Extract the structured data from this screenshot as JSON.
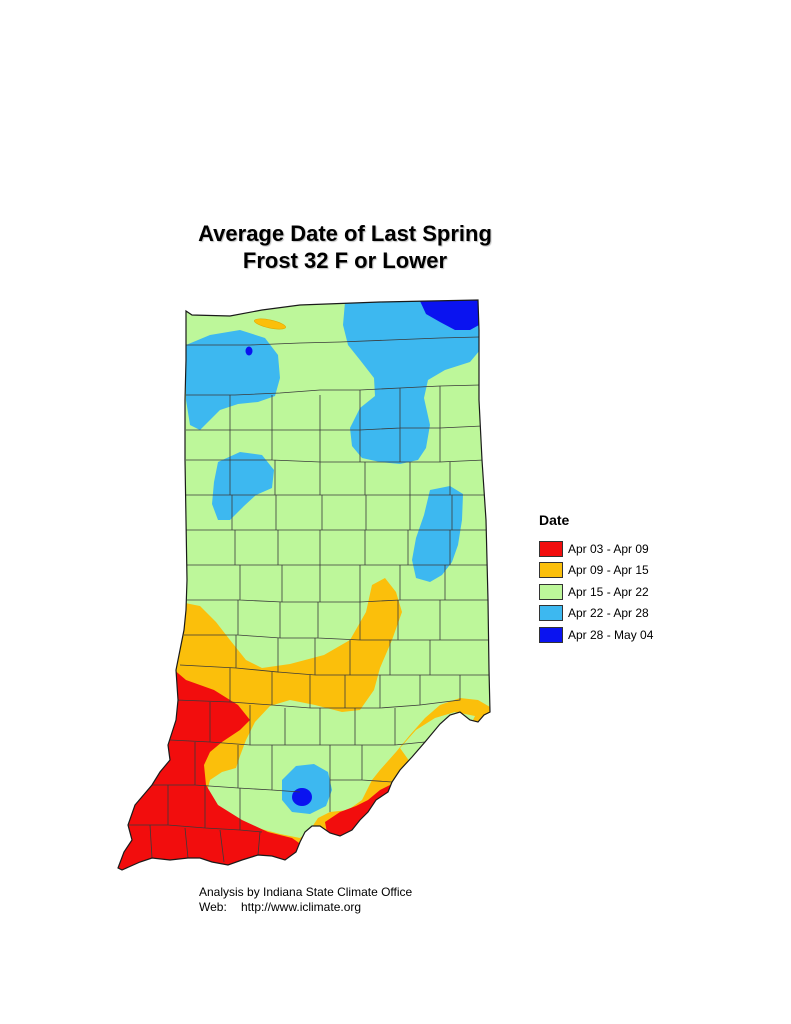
{
  "title": {
    "line1": "Average Date of Last Spring",
    "line2": "Frost 32 F or Lower"
  },
  "legend": {
    "title": "Date",
    "items": [
      {
        "label": "Apr 03 - Apr 09",
        "color": "#f20d0d"
      },
      {
        "label": "Apr 09 - Apr 15",
        "color": "#fbbf0b"
      },
      {
        "label": "Apr 15 - Apr 22",
        "color": "#bdf79a"
      },
      {
        "label": "Apr 22 - Apr 28",
        "color": "#3db8f0"
      },
      {
        "label": "Apr 28 - May 04",
        "color": "#0a13f0"
      }
    ]
  },
  "credits": {
    "analysis": "Analysis by Indiana State Climate Office",
    "web_label": "Web:",
    "web_url": "http://www.iclimate.org"
  },
  "map": {
    "region": "Indiana",
    "boundary_lines": "county-boundaries"
  }
}
